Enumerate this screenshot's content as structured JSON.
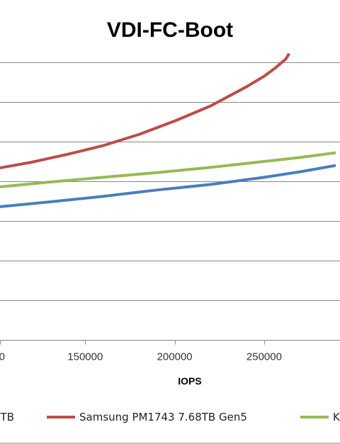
{
  "chart_data": {
    "type": "line",
    "title": "VDI-FC-Boot",
    "xlabel": "IOPS",
    "ylabel": "",
    "xlim": [
      100000,
      290000
    ],
    "ylim": [
      0,
      8
    ],
    "x_ticks": [
      {
        "value": 150000,
        "label": "150000"
      },
      {
        "value": 200000,
        "label": "200000"
      },
      {
        "value": 250000,
        "label": "250000"
      }
    ],
    "y_gridlines": [
      1,
      2,
      3,
      4,
      5,
      6,
      7
    ],
    "grid": true,
    "legend_position": "bottom",
    "series": [
      {
        "name": "",
        "color": "#4a7ebb",
        "points": [
          [
            100000,
            3.35
          ],
          [
            130000,
            3.48
          ],
          [
            160000,
            3.62
          ],
          [
            190000,
            3.78
          ],
          [
            220000,
            3.92
          ],
          [
            250000,
            4.1
          ],
          [
            270000,
            4.24
          ],
          [
            290000,
            4.4
          ]
        ]
      },
      {
        "name": "Samsung PM1743 7.68TB Gen5",
        "color": "#be4b48",
        "points": [
          [
            100000,
            4.32
          ],
          [
            120000,
            4.48
          ],
          [
            140000,
            4.68
          ],
          [
            160000,
            4.9
          ],
          [
            180000,
            5.18
          ],
          [
            200000,
            5.52
          ],
          [
            220000,
            5.9
          ],
          [
            240000,
            6.38
          ],
          [
            250000,
            6.65
          ],
          [
            256000,
            6.85
          ],
          [
            262000,
            7.08
          ],
          [
            264000,
            7.22
          ]
        ]
      },
      {
        "name": "K",
        "color": "#98b954",
        "points": [
          [
            100000,
            3.85
          ],
          [
            130000,
            3.98
          ],
          [
            160000,
            4.1
          ],
          [
            190000,
            4.22
          ],
          [
            220000,
            4.35
          ],
          [
            250000,
            4.5
          ],
          [
            270000,
            4.6
          ],
          [
            290000,
            4.72
          ]
        ]
      }
    ],
    "legend": [
      {
        "label": "TB",
        "color": "#4a7ebb"
      },
      {
        "label": "Samsung PM1743 7.68TB Gen5",
        "color": "#be4b48"
      },
      {
        "label": "K",
        "color": "#98b954"
      }
    ]
  }
}
